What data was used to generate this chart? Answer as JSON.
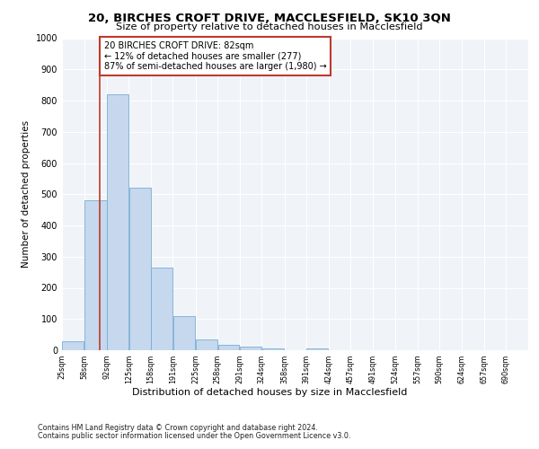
{
  "title": "20, BIRCHES CROFT DRIVE, MACCLESFIELD, SK10 3QN",
  "subtitle": "Size of property relative to detached houses in Macclesfield",
  "xlabel": "Distribution of detached houses by size in Macclesfield",
  "ylabel": "Number of detached properties",
  "footnote1": "Contains HM Land Registry data © Crown copyright and database right 2024.",
  "footnote2": "Contains public sector information licensed under the Open Government Licence v3.0.",
  "annotation_line1": "20 BIRCHES CROFT DRIVE: 82sqm",
  "annotation_line2": "← 12% of detached houses are smaller (277)",
  "annotation_line3": "87% of semi-detached houses are larger (1,980) →",
  "property_size": 82,
  "bar_left_edges": [
    25,
    58,
    92,
    125,
    158,
    191,
    225,
    258,
    291,
    324,
    358,
    391,
    424,
    457,
    491,
    524,
    557,
    590,
    624,
    657
  ],
  "bar_widths": [
    33,
    34,
    33,
    33,
    33,
    34,
    33,
    33,
    33,
    34,
    33,
    33,
    33,
    34,
    33,
    33,
    33,
    34,
    33,
    33
  ],
  "bar_heights": [
    28,
    480,
    820,
    520,
    265,
    110,
    35,
    18,
    12,
    5,
    0,
    5,
    0,
    0,
    0,
    0,
    0,
    0,
    0,
    0
  ],
  "tick_labels": [
    "25sqm",
    "58sqm",
    "92sqm",
    "125sqm",
    "158sqm",
    "191sqm",
    "225sqm",
    "258sqm",
    "291sqm",
    "324sqm",
    "358sqm",
    "391sqm",
    "424sqm",
    "457sqm",
    "491sqm",
    "524sqm",
    "557sqm",
    "590sqm",
    "624sqm",
    "657sqm",
    "690sqm"
  ],
  "tick_positions": [
    25,
    58,
    92,
    125,
    158,
    191,
    225,
    258,
    291,
    324,
    358,
    391,
    424,
    457,
    491,
    524,
    557,
    590,
    624,
    657,
    690
  ],
  "bar_color": "#c5d8ed",
  "bar_edge_color": "#7aadd4",
  "marker_color": "#c0392b",
  "background_color": "#f0f4f8",
  "ylim": [
    0,
    1000
  ],
  "xlim": [
    25,
    723
  ]
}
